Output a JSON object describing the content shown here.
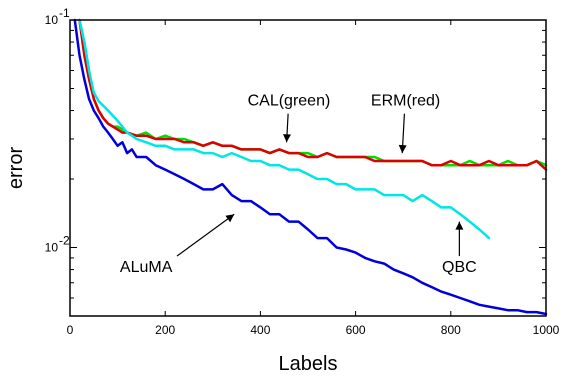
{
  "chart_data": {
    "type": "line",
    "xlabel": "Labels",
    "ylabel": "error",
    "xlim": [
      0,
      1000
    ],
    "ylim": [
      0.005,
      0.1
    ],
    "yscale": "log",
    "grid": false,
    "xticks": [
      0,
      200,
      400,
      600,
      800,
      1000
    ],
    "xtick_labels": [
      "0",
      "200",
      "400",
      "600",
      "800",
      "1000"
    ],
    "yticks": [
      0.01,
      0.1
    ],
    "ytick_labels": [
      {
        "base": "10",
        "exp": "-2"
      },
      {
        "base": "10",
        "exp": "-1"
      }
    ],
    "series": [
      {
        "color": "#00dd00",
        "x": [
          20,
          30,
          40,
          50,
          60,
          70,
          80,
          90,
          100,
          110,
          120,
          140,
          160,
          180,
          200,
          220,
          240,
          260,
          280,
          300,
          320,
          340,
          360,
          380,
          400,
          420,
          440,
          460,
          480,
          500,
          520,
          540,
          560,
          580,
          600,
          620,
          640,
          660,
          680,
          700,
          720,
          740,
          760,
          780,
          800,
          820,
          840,
          860,
          880,
          900,
          920,
          940,
          960,
          980,
          1000
        ],
        "y": [
          0.1,
          0.08,
          0.06,
          0.045,
          0.04,
          0.037,
          0.035,
          0.034,
          0.034,
          0.033,
          0.032,
          0.031,
          0.032,
          0.03,
          0.031,
          0.03,
          0.03,
          0.029,
          0.028,
          0.029,
          0.028,
          0.028,
          0.027,
          0.027,
          0.027,
          0.026,
          0.027,
          0.026,
          0.026,
          0.026,
          0.025,
          0.026,
          0.025,
          0.025,
          0.025,
          0.025,
          0.025,
          0.024,
          0.024,
          0.024,
          0.024,
          0.024,
          0.023,
          0.023,
          0.023,
          0.023,
          0.024,
          0.023,
          0.023,
          0.023,
          0.024,
          0.023,
          0.023,
          0.024,
          0.023
        ]
      },
      {
        "color": "#dd0000",
        "x": [
          20,
          30,
          40,
          50,
          60,
          70,
          80,
          90,
          100,
          110,
          120,
          140,
          160,
          180,
          200,
          220,
          240,
          260,
          280,
          300,
          320,
          340,
          360,
          380,
          400,
          420,
          440,
          460,
          480,
          500,
          520,
          540,
          560,
          580,
          600,
          620,
          640,
          660,
          680,
          700,
          720,
          740,
          760,
          780,
          800,
          820,
          840,
          860,
          880,
          900,
          920,
          940,
          960,
          980,
          1000
        ],
        "y": [
          0.1,
          0.07,
          0.055,
          0.045,
          0.04,
          0.037,
          0.035,
          0.034,
          0.033,
          0.032,
          0.032,
          0.031,
          0.031,
          0.03,
          0.03,
          0.03,
          0.029,
          0.029,
          0.028,
          0.029,
          0.028,
          0.028,
          0.027,
          0.027,
          0.027,
          0.026,
          0.027,
          0.026,
          0.026,
          0.025,
          0.025,
          0.026,
          0.025,
          0.025,
          0.025,
          0.025,
          0.024,
          0.024,
          0.024,
          0.024,
          0.024,
          0.024,
          0.023,
          0.023,
          0.024,
          0.023,
          0.023,
          0.023,
          0.024,
          0.023,
          0.023,
          0.023,
          0.023,
          0.024,
          0.022
        ]
      },
      {
        "color": "#00e5e5",
        "x": [
          20,
          30,
          40,
          50,
          60,
          70,
          80,
          90,
          100,
          110,
          120,
          130,
          140,
          160,
          180,
          200,
          220,
          240,
          260,
          280,
          300,
          320,
          340,
          360,
          380,
          400,
          420,
          440,
          460,
          480,
          500,
          520,
          540,
          560,
          580,
          600,
          620,
          640,
          660,
          680,
          700,
          720,
          740,
          760,
          780,
          800,
          820,
          840,
          860,
          880
        ],
        "y": [
          0.1,
          0.08,
          0.06,
          0.048,
          0.044,
          0.042,
          0.04,
          0.038,
          0.036,
          0.034,
          0.032,
          0.031,
          0.03,
          0.029,
          0.028,
          0.028,
          0.027,
          0.027,
          0.027,
          0.026,
          0.026,
          0.025,
          0.026,
          0.025,
          0.024,
          0.024,
          0.023,
          0.023,
          0.022,
          0.022,
          0.021,
          0.02,
          0.02,
          0.019,
          0.019,
          0.018,
          0.018,
          0.018,
          0.017,
          0.017,
          0.017,
          0.016,
          0.017,
          0.016,
          0.015,
          0.015,
          0.014,
          0.013,
          0.012,
          0.011
        ]
      },
      {
        "color": "#0000dd",
        "x": [
          10,
          20,
          30,
          40,
          50,
          60,
          70,
          80,
          90,
          100,
          110,
          120,
          130,
          140,
          160,
          180,
          200,
          220,
          240,
          260,
          280,
          300,
          320,
          340,
          360,
          380,
          400,
          420,
          440,
          460,
          480,
          500,
          520,
          540,
          560,
          580,
          600,
          620,
          640,
          660,
          680,
          700,
          720,
          740,
          760,
          780,
          800,
          820,
          840,
          860,
          880,
          900,
          920,
          940,
          960,
          980,
          1000
        ],
        "y": [
          0.1,
          0.07,
          0.055,
          0.045,
          0.04,
          0.037,
          0.034,
          0.032,
          0.03,
          0.028,
          0.029,
          0.026,
          0.027,
          0.025,
          0.025,
          0.023,
          0.022,
          0.021,
          0.02,
          0.019,
          0.018,
          0.018,
          0.019,
          0.017,
          0.016,
          0.016,
          0.015,
          0.014,
          0.014,
          0.013,
          0.013,
          0.012,
          0.011,
          0.011,
          0.01,
          0.0098,
          0.0095,
          0.009,
          0.0087,
          0.0085,
          0.008,
          0.0077,
          0.0074,
          0.007,
          0.0067,
          0.0064,
          0.0062,
          0.006,
          0.0058,
          0.0056,
          0.0055,
          0.0054,
          0.0053,
          0.0053,
          0.0052,
          0.0052,
          0.0051
        ]
      }
    ],
    "annotations": [
      {
        "text": "CAL(green)",
        "x": 460,
        "y": 0.042,
        "arrow_to": [
          455,
          0.029
        ]
      },
      {
        "text": "ERM(red)",
        "x": 705,
        "y": 0.042,
        "arrow_to": [
          698,
          0.026
        ]
      },
      {
        "text": "ALuMA",
        "x": 160,
        "y": 0.0078,
        "arrow_to": [
          345,
          0.014
        ]
      },
      {
        "text": "QBC",
        "x": 818,
        "y": 0.0078,
        "arrow_to": [
          818,
          0.013
        ]
      }
    ]
  }
}
